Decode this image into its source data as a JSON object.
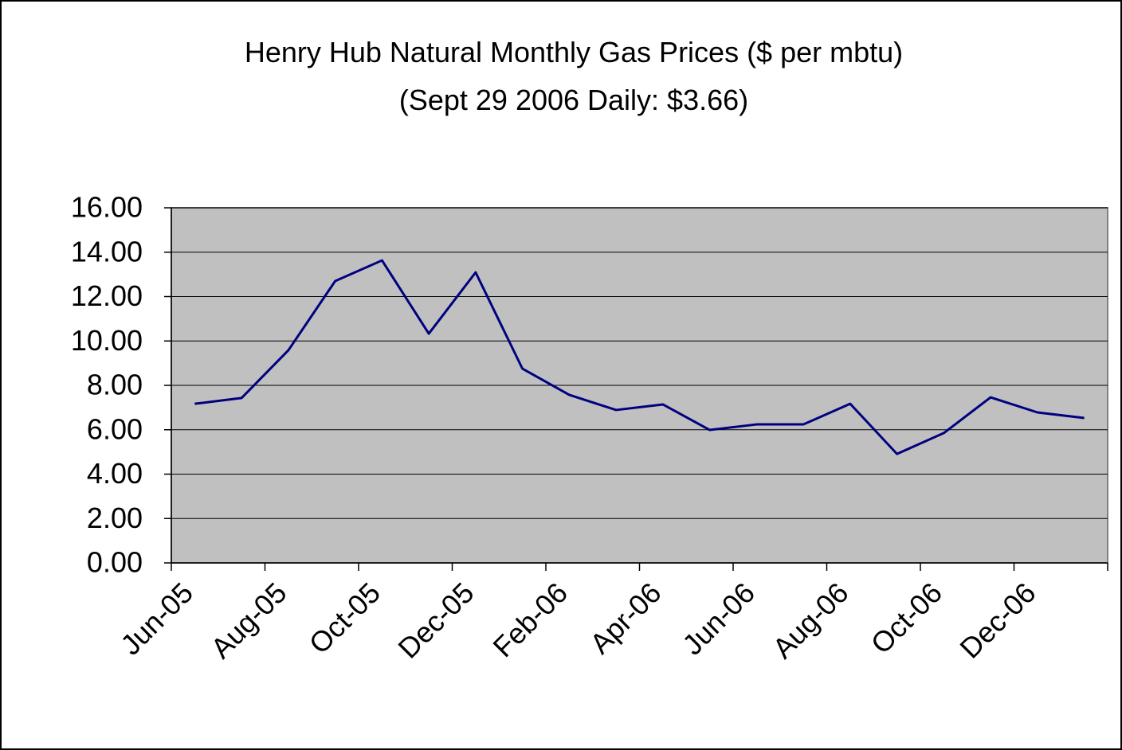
{
  "chart_data": {
    "type": "line",
    "title": "Henry Hub Natural Monthly Gas Prices ($ per mbtu)",
    "subtitle": "(Sept 29 2006 Daily: $3.66)",
    "categories": [
      "Jun-05",
      null,
      "Aug-05",
      null,
      "Oct-05",
      null,
      "Dec-05",
      null,
      "Feb-06",
      null,
      "Apr-06",
      null,
      "Jun-06",
      null,
      "Aug-06",
      null,
      "Oct-06",
      null,
      "Dec-06",
      null
    ],
    "series": [
      {
        "color": "#000080",
        "values": [
          7.17,
          7.43,
          9.58,
          12.7,
          13.63,
          10.33,
          13.09,
          8.75,
          7.57,
          6.89,
          7.14,
          5.99,
          6.24,
          6.24,
          7.17,
          4.91,
          5.85,
          7.46,
          6.78,
          6.53
        ]
      }
    ],
    "ylim": [
      0,
      16
    ],
    "yticks": [
      {
        "value": 0,
        "label": "0.00"
      },
      {
        "value": 2,
        "label": "2.00"
      },
      {
        "value": 4,
        "label": "4.00"
      },
      {
        "value": 6,
        "label": "6.00"
      },
      {
        "value": 8,
        "label": "8.00"
      },
      {
        "value": 10,
        "label": "10.00"
      },
      {
        "value": 12,
        "label": "12.00"
      },
      {
        "value": 14,
        "label": "14.00"
      },
      {
        "value": 16,
        "label": "16.00"
      }
    ],
    "grid": true,
    "plot_background": "#c0c0c0"
  }
}
